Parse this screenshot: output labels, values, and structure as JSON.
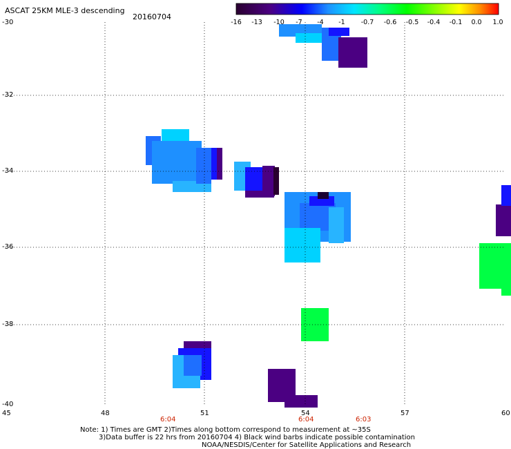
{
  "header": {
    "title": "ASCAT 25KM MLE-3 descending",
    "date": "20160704"
  },
  "colorbar": {
    "labels": [
      "-16",
      "-13",
      "-10",
      "-7",
      "-4",
      "-1",
      "-0.7",
      "-0.6",
      "-0.5",
      "-0.4",
      "-0.1",
      "0.0",
      "1.0"
    ],
    "gradient_stops": [
      "#2a0030",
      "#4b0082",
      "#0000ff",
      "#1e90ff",
      "#00e5ff",
      "#00ff7f",
      "#00ff00",
      "#7fff00",
      "#ffff00",
      "#ff8c00",
      "#ff0000"
    ]
  },
  "axes": {
    "x_ticks": [
      "45",
      "48",
      "51",
      "54",
      "57",
      "60"
    ],
    "y_ticks": [
      "-30",
      "-32",
      "-34",
      "-36",
      "-38",
      "-40"
    ]
  },
  "time_labels": [
    "6:04",
    "6:04",
    "6:03"
  ],
  "notes": {
    "line1": "Note: 1) Times are GMT 2)Times along bottom correspond to measurement at ~35S",
    "line2": "3)Data buffer is 22 hrs from 20160704 4) Black wind barbs indicate possible contamination",
    "line3": "NOAA/NESDIS/Center for Satellite Applications and Research"
  },
  "map_data": {
    "field": "MLE-3",
    "colors": {
      "deep_purple": "#4b0082",
      "dark": "#1a0033",
      "blue": "#1414ff",
      "medium_blue": "#1e6fff",
      "azure": "#1e90ff",
      "light_blue": "#28b4ff",
      "cyan": "#00d2ff",
      "green": "#00ff44"
    },
    "cells": [
      {
        "lon": 49.4,
        "lat": -33.8,
        "color": "azure"
      },
      {
        "lon": 50.6,
        "lat": -34.2,
        "color": "azure"
      },
      {
        "lon": 51.4,
        "lat": -33.9,
        "color": "blue"
      },
      {
        "lon": 52.4,
        "lat": -34.1,
        "color": "blue"
      },
      {
        "lon": 53.3,
        "lat": -34.2,
        "color": "deep_purple"
      },
      {
        "lon": 54.4,
        "lat": -35.5,
        "color": "medium_blue"
      },
      {
        "lon": 54.6,
        "lat": -34.9,
        "color": "dark"
      },
      {
        "lon": 54.2,
        "lat": -36.1,
        "color": "cyan"
      },
      {
        "lon": 54.0,
        "lat": -30.3,
        "color": "light_blue"
      },
      {
        "lon": 55.3,
        "lat": -30.7,
        "color": "blue"
      },
      {
        "lon": 56.2,
        "lat": -30.9,
        "color": "deep_purple"
      },
      {
        "lon": 54.5,
        "lat": -38.0,
        "color": "green"
      },
      {
        "lon": 50.4,
        "lat": -38.8,
        "color": "deep_purple"
      },
      {
        "lon": 50.1,
        "lat": -39.3,
        "color": "blue"
      },
      {
        "lon": 53.6,
        "lat": -39.6,
        "color": "deep_purple"
      },
      {
        "lon": 59.7,
        "lat": -36.5,
        "color": "green"
      },
      {
        "lon": 60.0,
        "lat": -35.2,
        "color": "deep_purple"
      }
    ]
  }
}
